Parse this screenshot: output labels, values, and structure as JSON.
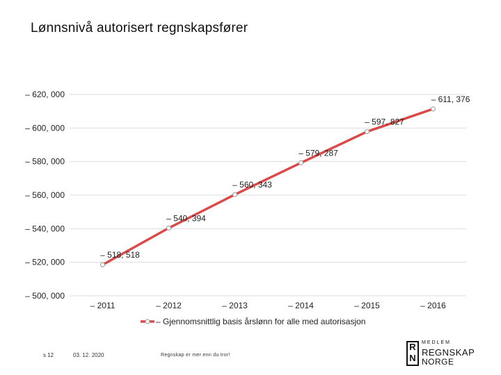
{
  "title": "Lønnsnivå autorisert regnskapsfører",
  "chart_data": {
    "type": "line",
    "title": "Lønnsnivå autorisert regnskapsfører",
    "categories": [
      "2011",
      "2012",
      "2013",
      "2014",
      "2015",
      "2016"
    ],
    "category_labels": [
      "– 2011",
      "– 2012",
      "– 2013",
      "– 2014",
      "– 2015",
      "– 2016"
    ],
    "series": [
      {
        "name": "Gjennomsnittlig basis årslønn for alle med autorisasjon",
        "values": [
          518518,
          540394,
          560343,
          579287,
          597827,
          611376
        ],
        "data_labels": [
          "– 518, 518",
          "– 540, 394",
          "– 560, 343",
          "– 579, 287",
          "– 597, 827",
          "– 611, 376"
        ],
        "color": "#d94a48"
      }
    ],
    "y_ticks": [
      500000,
      520000,
      540000,
      560000,
      580000,
      600000,
      620000
    ],
    "y_tick_labels": [
      "– 500, 000",
      "– 520, 000",
      "– 540, 000",
      "– 560, 000",
      "– 580, 000",
      "– 600, 000",
      "– 620, 000"
    ],
    "ylim": [
      500000,
      620000
    ],
    "grid": true,
    "legend_position": "bottom",
    "legend_label": "– Gjennomsnittlig basis årslønn for alle med autorisasjon"
  },
  "footer": {
    "page": "s 12",
    "date": "03. 12. 2020",
    "slogan": "Regnskap er mer enn du tror!"
  },
  "logo": {
    "letter_r": "R",
    "letter_n": "N",
    "line1": "MEDLEM",
    "line2": "REGNSKAP",
    "line3": "NORGE"
  },
  "colors": {
    "line": "#d94a48",
    "marker_fill": "#ffffff",
    "marker_stroke": "#999999",
    "grid": "#dddddd"
  }
}
